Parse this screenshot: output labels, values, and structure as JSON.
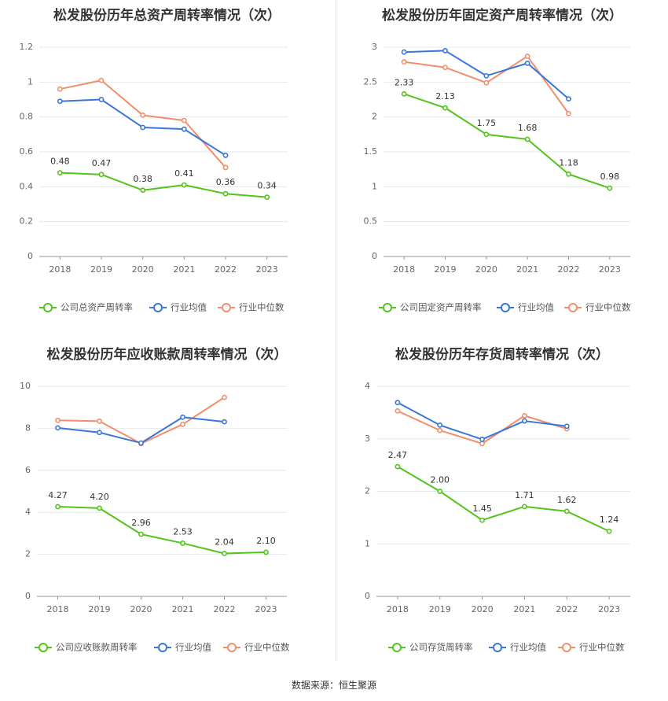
{
  "source_text": "数据来源：恒生聚源",
  "colors": {
    "company": "#52c41a",
    "avg": "#3a76d8",
    "median": "#f28e6b"
  },
  "chart_data": [
    {
      "type": "line",
      "title": "松发股份历年总资产周转率情况（次）",
      "categories": [
        "2018",
        "2019",
        "2020",
        "2021",
        "2022",
        "2023"
      ],
      "ylim": [
        0,
        1.2
      ],
      "yticks": [
        0,
        0.2,
        0.4,
        0.6,
        0.8,
        1,
        1.2
      ],
      "ytick_labels": [
        "0",
        "0.2",
        "0.4",
        "0.6",
        "0.8",
        "1",
        "1.2"
      ],
      "grid": true,
      "legend_position": "bottom",
      "series": [
        {
          "name": "公司总资产周转率",
          "values": [
            0.48,
            0.47,
            0.38,
            0.41,
            0.36,
            0.34
          ],
          "labels": [
            "0.48",
            "0.47",
            "0.38",
            "0.41",
            "0.36",
            "0.34"
          ]
        },
        {
          "name": "行业均值",
          "values": [
            0.89,
            0.9,
            0.74,
            0.73,
            0.58,
            null
          ]
        },
        {
          "name": "行业中位数",
          "values": [
            0.96,
            1.01,
            0.81,
            0.78,
            0.51,
            null
          ]
        }
      ]
    },
    {
      "type": "line",
      "title": "松发股份历年固定资产周转率情况（次）",
      "categories": [
        "2018",
        "2019",
        "2020",
        "2021",
        "2022",
        "2023"
      ],
      "ylim": [
        0,
        3
      ],
      "yticks": [
        0,
        0.5,
        1,
        1.5,
        2,
        2.5,
        3
      ],
      "ytick_labels": [
        "0",
        "0.5",
        "1",
        "1.5",
        "2",
        "2.5",
        "3"
      ],
      "grid": true,
      "legend_position": "bottom",
      "series": [
        {
          "name": "公司固定资产周转率",
          "values": [
            2.33,
            2.13,
            1.75,
            1.68,
            1.18,
            0.98
          ],
          "labels": [
            "2.33",
            "2.13",
            "1.75",
            "1.68",
            "1.18",
            "0.98"
          ]
        },
        {
          "name": "行业均值",
          "values": [
            2.93,
            2.95,
            2.59,
            2.77,
            2.26,
            null
          ]
        },
        {
          "name": "行业中位数",
          "values": [
            2.79,
            2.71,
            2.49,
            2.87,
            2.05,
            null
          ]
        }
      ]
    },
    {
      "type": "line",
      "title": "松发股份历年应收账款周转率情况（次）",
      "categories": [
        "2018",
        "2019",
        "2020",
        "2021",
        "2022",
        "2023"
      ],
      "ylim": [
        0,
        10
      ],
      "yticks": [
        0,
        2,
        4,
        6,
        8,
        10
      ],
      "ytick_labels": [
        "0",
        "2",
        "4",
        "6",
        "8",
        "10"
      ],
      "grid": true,
      "legend_position": "bottom",
      "series": [
        {
          "name": "公司应收账款周转率",
          "values": [
            4.27,
            4.2,
            2.96,
            2.53,
            2.04,
            2.1
          ],
          "labels": [
            "4.27",
            "4.20",
            "2.96",
            "2.53",
            "2.04",
            "2.10"
          ]
        },
        {
          "name": "行业均值",
          "values": [
            8.02,
            7.8,
            7.3,
            8.53,
            8.31,
            null
          ]
        },
        {
          "name": "行业中位数",
          "values": [
            8.38,
            8.34,
            7.27,
            8.19,
            9.47,
            null
          ]
        }
      ]
    },
    {
      "type": "line",
      "title": "松发股份历年存货周转率情况（次）",
      "categories": [
        "2018",
        "2019",
        "2020",
        "2021",
        "2022",
        "2023"
      ],
      "ylim": [
        0,
        4
      ],
      "yticks": [
        0,
        1,
        2,
        3,
        4
      ],
      "ytick_labels": [
        "0",
        "1",
        "2",
        "3",
        "4"
      ],
      "grid": true,
      "legend_position": "bottom",
      "series": [
        {
          "name": "公司存货周转率",
          "values": [
            2.47,
            2.0,
            1.45,
            1.71,
            1.62,
            1.24
          ],
          "labels": [
            "2.47",
            "2.00",
            "1.45",
            "1.71",
            "1.62",
            "1.24"
          ]
        },
        {
          "name": "行业均值",
          "values": [
            3.69,
            3.26,
            2.99,
            3.34,
            3.24,
            null
          ]
        },
        {
          "name": "行业中位数",
          "values": [
            3.53,
            3.16,
            2.91,
            3.44,
            3.19,
            null
          ]
        }
      ]
    }
  ]
}
